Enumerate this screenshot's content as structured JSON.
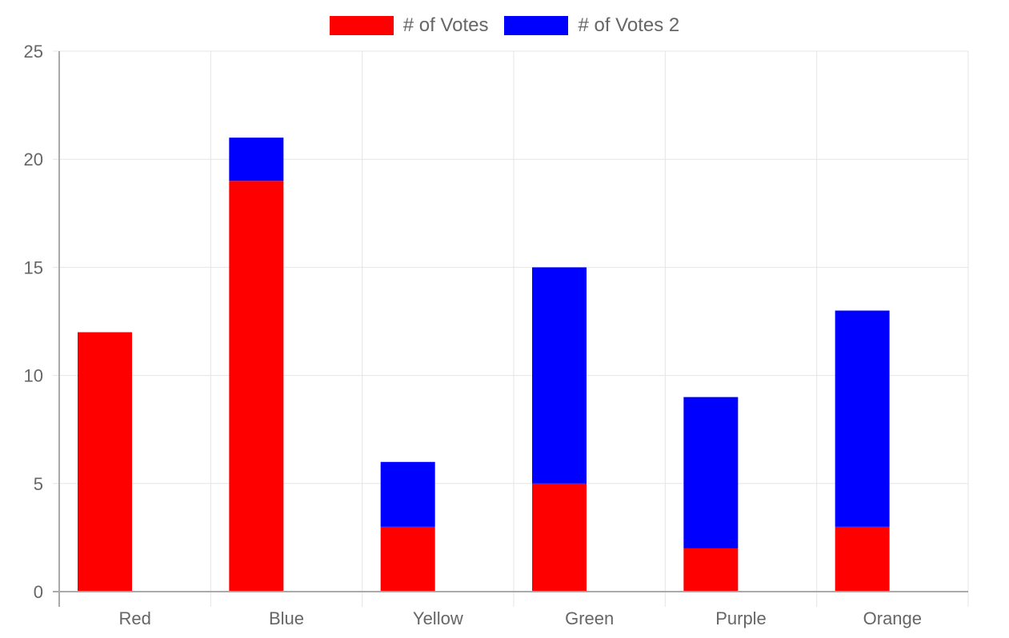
{
  "chart_data": {
    "type": "bar",
    "stacked": true,
    "title": "",
    "xlabel": "",
    "ylabel": "",
    "categories": [
      "Red",
      "Blue",
      "Yellow",
      "Green",
      "Purple",
      "Orange"
    ],
    "series": [
      {
        "name": "# of Votes",
        "color": "#ff0000",
        "values": [
          12,
          19,
          3,
          5,
          2,
          3
        ]
      },
      {
        "name": "# of Votes 2",
        "color": "#0000ff",
        "values": [
          0,
          2,
          3,
          10,
          7,
          10
        ]
      }
    ],
    "ylim": [
      0,
      25
    ],
    "yticks": [
      0,
      5,
      10,
      15,
      20,
      25
    ],
    "grid": true,
    "legend_position": "top"
  },
  "legend": {
    "items": [
      {
        "label": "# of Votes",
        "color": "#ff0000"
      },
      {
        "label": "# of Votes 2",
        "color": "#0000ff"
      }
    ]
  }
}
